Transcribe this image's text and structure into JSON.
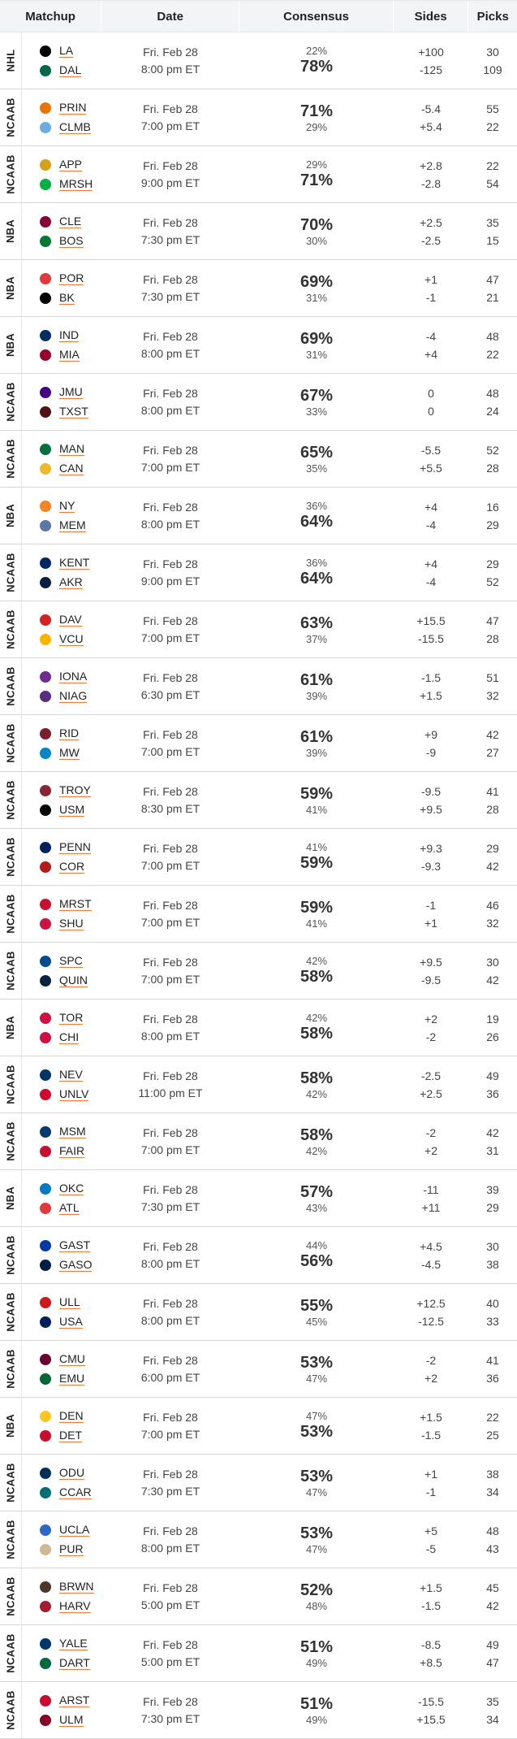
{
  "headers": [
    "Matchup",
    "Date",
    "Consensus",
    "Sides",
    "Picks"
  ],
  "rows": [
    {
      "league": "NHL",
      "t1": "LA",
      "t2": "DAL",
      "c1": "#000000",
      "c2": "#006847",
      "day": "Fri. Feb 28",
      "time": "8:00 pm ET",
      "p1": "22%",
      "p2": "78%",
      "s1": "+100",
      "s2": "-125",
      "k1": "30",
      "k2": "109"
    },
    {
      "league": "NCAAB",
      "t1": "PRIN",
      "t2": "CLMB",
      "c1": "#e77500",
      "c2": "#6cace4",
      "day": "Fri. Feb 28",
      "time": "7:00 pm ET",
      "p1": "71%",
      "p2": "29%",
      "s1": "-5.4",
      "s2": "+5.4",
      "k1": "55",
      "k2": "22"
    },
    {
      "league": "NCAAB",
      "t1": "APP",
      "t2": "MRSH",
      "c1": "#d4a017",
      "c2": "#00b140",
      "day": "Fri. Feb 28",
      "time": "9:00 pm ET",
      "p1": "29%",
      "p2": "71%",
      "s1": "+2.8",
      "s2": "-2.8",
      "k1": "22",
      "k2": "54"
    },
    {
      "league": "NBA",
      "t1": "CLE",
      "t2": "BOS",
      "c1": "#860038",
      "c2": "#007a33",
      "day": "Fri. Feb 28",
      "time": "7:30 pm ET",
      "p1": "70%",
      "p2": "30%",
      "s1": "+2.5",
      "s2": "-2.5",
      "k1": "35",
      "k2": "15"
    },
    {
      "league": "NBA",
      "t1": "POR",
      "t2": "BK",
      "c1": "#e03a3e",
      "c2": "#000000",
      "day": "Fri. Feb 28",
      "time": "7:30 pm ET",
      "p1": "69%",
      "p2": "31%",
      "s1": "+1",
      "s2": "-1",
      "k1": "47",
      "k2": "21"
    },
    {
      "league": "NBA",
      "t1": "IND",
      "t2": "MIA",
      "c1": "#002d62",
      "c2": "#98002e",
      "day": "Fri. Feb 28",
      "time": "8:00 pm ET",
      "p1": "69%",
      "p2": "31%",
      "s1": "-4",
      "s2": "+4",
      "k1": "48",
      "k2": "22"
    },
    {
      "league": "NCAAB",
      "t1": "JMU",
      "t2": "TXST",
      "c1": "#450084",
      "c2": "#501214",
      "day": "Fri. Feb 28",
      "time": "8:00 pm ET",
      "p1": "67%",
      "p2": "33%",
      "s1": "0",
      "s2": "0",
      "k1": "48",
      "k2": "24"
    },
    {
      "league": "NCAAB",
      "t1": "MAN",
      "t2": "CAN",
      "c1": "#00703c",
      "c2": "#f1b82d",
      "day": "Fri. Feb 28",
      "time": "7:00 pm ET",
      "p1": "65%",
      "p2": "35%",
      "s1": "-5.5",
      "s2": "+5.5",
      "k1": "52",
      "k2": "28"
    },
    {
      "league": "NBA",
      "t1": "NY",
      "t2": "MEM",
      "c1": "#f58426",
      "c2": "#5d76a9",
      "day": "Fri. Feb 28",
      "time": "8:00 pm ET",
      "p1": "36%",
      "p2": "64%",
      "s1": "+4",
      "s2": "-4",
      "k1": "16",
      "k2": "29"
    },
    {
      "league": "NCAAB",
      "t1": "KENT",
      "t2": "AKR",
      "c1": "#002664",
      "c2": "#041e42",
      "day": "Fri. Feb 28",
      "time": "9:00 pm ET",
      "p1": "36%",
      "p2": "64%",
      "s1": "+4",
      "s2": "-4",
      "k1": "29",
      "k2": "52"
    },
    {
      "league": "NCAAB",
      "t1": "DAV",
      "t2": "VCU",
      "c1": "#d42121",
      "c2": "#ffb300",
      "day": "Fri. Feb 28",
      "time": "7:00 pm ET",
      "p1": "63%",
      "p2": "37%",
      "s1": "+15.5",
      "s2": "-15.5",
      "k1": "47",
      "k2": "28"
    },
    {
      "league": "NCAAB",
      "t1": "IONA",
      "t2": "NIAG",
      "c1": "#6f2c91",
      "c2": "#582c83",
      "day": "Fri. Feb 28",
      "time": "6:30 pm ET",
      "p1": "61%",
      "p2": "39%",
      "s1": "-1.5",
      "s2": "+1.5",
      "k1": "51",
      "k2": "32"
    },
    {
      "league": "NCAAB",
      "t1": "RID",
      "t2": "MW",
      "c1": "#7a1f2b",
      "c2": "#0085ca",
      "day": "Fri. Feb 28",
      "time": "7:00 pm ET",
      "p1": "61%",
      "p2": "39%",
      "s1": "+9",
      "s2": "-9",
      "k1": "42",
      "k2": "27"
    },
    {
      "league": "NCAAB",
      "t1": "TROY",
      "t2": "USM",
      "c1": "#8a2432",
      "c2": "#000000",
      "day": "Fri. Feb 28",
      "time": "8:30 pm ET",
      "p1": "59%",
      "p2": "41%",
      "s1": "-9.5",
      "s2": "+9.5",
      "k1": "41",
      "k2": "28"
    },
    {
      "league": "NCAAB",
      "t1": "PENN",
      "t2": "COR",
      "c1": "#011f5b",
      "c2": "#b31b1b",
      "day": "Fri. Feb 28",
      "time": "7:00 pm ET",
      "p1": "41%",
      "p2": "59%",
      "s1": "+9.3",
      "s2": "-9.3",
      "k1": "29",
      "k2": "42"
    },
    {
      "league": "NCAAB",
      "t1": "MRST",
      "t2": "SHU",
      "c1": "#c8102e",
      "c2": "#ce1141",
      "day": "Fri. Feb 28",
      "time": "7:00 pm ET",
      "p1": "59%",
      "p2": "41%",
      "s1": "-1",
      "s2": "+1",
      "k1": "46",
      "k2": "32"
    },
    {
      "league": "NCAAB",
      "t1": "SPC",
      "t2": "QUIN",
      "c1": "#004b8d",
      "c2": "#0a2240",
      "day": "Fri. Feb 28",
      "time": "7:00 pm ET",
      "p1": "42%",
      "p2": "58%",
      "s1": "+9.5",
      "s2": "-9.5",
      "k1": "30",
      "k2": "42"
    },
    {
      "league": "NBA",
      "t1": "TOR",
      "t2": "CHI",
      "c1": "#ce1141",
      "c2": "#ce1141",
      "day": "Fri. Feb 28",
      "time": "8:00 pm ET",
      "p1": "42%",
      "p2": "58%",
      "s1": "+2",
      "s2": "-2",
      "k1": "19",
      "k2": "26"
    },
    {
      "league": "NCAAB",
      "t1": "NEV",
      "t2": "UNLV",
      "c1": "#003366",
      "c2": "#cf0a2c",
      "day": "Fri. Feb 28",
      "time": "11:00 pm ET",
      "p1": "58%",
      "p2": "42%",
      "s1": "-2.5",
      "s2": "+2.5",
      "k1": "49",
      "k2": "36"
    },
    {
      "league": "NCAAB",
      "t1": "MSM",
      "t2": "FAIR",
      "c1": "#003a70",
      "c2": "#c8102e",
      "day": "Fri. Feb 28",
      "time": "7:00 pm ET",
      "p1": "58%",
      "p2": "42%",
      "s1": "-2",
      "s2": "+2",
      "k1": "42",
      "k2": "31"
    },
    {
      "league": "NBA",
      "t1": "OKC",
      "t2": "ATL",
      "c1": "#007ac1",
      "c2": "#e03a3e",
      "day": "Fri. Feb 28",
      "time": "7:30 pm ET",
      "p1": "57%",
      "p2": "43%",
      "s1": "-11",
      "s2": "+11",
      "k1": "39",
      "k2": "29"
    },
    {
      "league": "NCAAB",
      "t1": "GAST",
      "t2": "GASO",
      "c1": "#0039a6",
      "c2": "#011e41",
      "day": "Fri. Feb 28",
      "time": "8:00 pm ET",
      "p1": "44%",
      "p2": "56%",
      "s1": "+4.5",
      "s2": "-4.5",
      "k1": "30",
      "k2": "38"
    },
    {
      "league": "NCAAB",
      "t1": "ULL",
      "t2": "USA",
      "c1": "#ce181e",
      "c2": "#00205b",
      "day": "Fri. Feb 28",
      "time": "8:00 pm ET",
      "p1": "55%",
      "p2": "45%",
      "s1": "+12.5",
      "s2": "-12.5",
      "k1": "40",
      "k2": "33"
    },
    {
      "league": "NCAAB",
      "t1": "CMU",
      "t2": "EMU",
      "c1": "#6a0032",
      "c2": "#006633",
      "day": "Fri. Feb 28",
      "time": "6:00 pm ET",
      "p1": "53%",
      "p2": "47%",
      "s1": "-2",
      "s2": "+2",
      "k1": "41",
      "k2": "36"
    },
    {
      "league": "NBA",
      "t1": "DEN",
      "t2": "DET",
      "c1": "#fec524",
      "c2": "#c8102e",
      "day": "Fri. Feb 28",
      "time": "7:00 pm ET",
      "p1": "47%",
      "p2": "53%",
      "s1": "+1.5",
      "s2": "-1.5",
      "k1": "22",
      "k2": "25"
    },
    {
      "league": "NCAAB",
      "t1": "ODU",
      "t2": "CCAR",
      "c1": "#003057",
      "c2": "#006f71",
      "day": "Fri. Feb 28",
      "time": "7:30 pm ET",
      "p1": "53%",
      "p2": "47%",
      "s1": "+1",
      "s2": "-1",
      "k1": "38",
      "k2": "34"
    },
    {
      "league": "NCAAB",
      "t1": "UCLA",
      "t2": "PUR",
      "c1": "#2d68c4",
      "c2": "#cfb991",
      "day": "Fri. Feb 28",
      "time": "8:00 pm ET",
      "p1": "53%",
      "p2": "47%",
      "s1": "+5",
      "s2": "-5",
      "k1": "48",
      "k2": "43"
    },
    {
      "league": "NCAAB",
      "t1": "BRWN",
      "t2": "HARV",
      "c1": "#4e3629",
      "c2": "#a51c30",
      "day": "Fri. Feb 28",
      "time": "5:00 pm ET",
      "p1": "52%",
      "p2": "48%",
      "s1": "+1.5",
      "s2": "-1.5",
      "k1": "45",
      "k2": "42"
    },
    {
      "league": "NCAAB",
      "t1": "YALE",
      "t2": "DART",
      "c1": "#00356b",
      "c2": "#00693e",
      "day": "Fri. Feb 28",
      "time": "5:00 pm ET",
      "p1": "51%",
      "p2": "49%",
      "s1": "-8.5",
      "s2": "+8.5",
      "k1": "49",
      "k2": "47"
    },
    {
      "league": "NCAAB",
      "t1": "ARST",
      "t2": "ULM",
      "c1": "#cc092f",
      "c2": "#840029",
      "day": "Fri. Feb 28",
      "time": "7:30 pm ET",
      "p1": "51%",
      "p2": "49%",
      "s1": "-15.5",
      "s2": "+15.5",
      "k1": "35",
      "k2": "34"
    }
  ]
}
